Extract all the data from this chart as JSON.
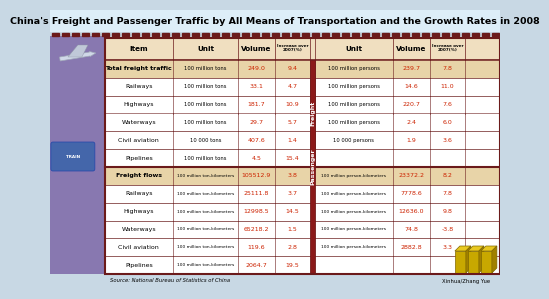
{
  "title": "China's Freight and Passenger Traffic by All Means of Transportation and the Growth Rates in 2008",
  "source_text": "Source: National Bureau of Statistics of China",
  "credit_text": "Xinhua/Zhang Yue",
  "freight_label": "Freight",
  "passenger_label": "Passenger",
  "bg_color": "#c8d8e4",
  "title_bg": "#ddeef8",
  "table_border": "#6b1a1a",
  "header_bg": "#f0dfc0",
  "bold_row_bg": "#e8d4a8",
  "normal_row_bg": "#ffffff",
  "dashed_color": "#6b1a1a",
  "vol_color": "#cc2200",
  "inc_color": "#cc2200",
  "text_color": "#000000",
  "freight_section": {
    "rows": [
      {
        "item": "Total freight traffic",
        "unit": "100 million tons",
        "volume": "249.0",
        "increase": "9.4",
        "unit2": "100 million persons",
        "volume2": "239.7",
        "increase2": "7.8",
        "bold": true
      },
      {
        "item": "Railways",
        "unit": "100 million tons",
        "volume": "33.1",
        "increase": "4.7",
        "unit2": "100 million persons",
        "volume2": "14.6",
        "increase2": "11.0",
        "bold": false
      },
      {
        "item": "Highways",
        "unit": "100 million tons",
        "volume": "181.7",
        "increase": "10.9",
        "unit2": "100 million persons",
        "volume2": "220.7",
        "increase2": "7.6",
        "bold": false
      },
      {
        "item": "Waterways",
        "unit": "100 million tons",
        "volume": "29.7",
        "increase": "5.7",
        "unit2": "100 million persons",
        "volume2": "2.4",
        "increase2": "6.0",
        "bold": false
      },
      {
        "item": "Civil aviation",
        "unit": "10 000 tons",
        "volume": "407.6",
        "increase": "1.4",
        "unit2": "10 000 persons",
        "volume2": "1.9",
        "increase2": "3.6",
        "bold": false
      },
      {
        "item": "Pipelines",
        "unit": "100 million tons",
        "volume": "4.5",
        "increase": "15.4",
        "unit2": "",
        "volume2": "",
        "increase2": "",
        "bold": false
      }
    ]
  },
  "flows_section": {
    "rows": [
      {
        "item": "Freight flows",
        "unit": "100 million ton-kilometers",
        "volume": "105512.9",
        "increase": "3.8",
        "unit2": "100 million person-kilometers",
        "volume2": "23372.2",
        "increase2": "8.2",
        "bold": true
      },
      {
        "item": "Railways",
        "unit": "100 million ton-kilometers",
        "volume": "25111.8",
        "increase": "3.7",
        "unit2": "100 million person-kilometers",
        "volume2": "7778.6",
        "increase2": "7.8",
        "bold": false
      },
      {
        "item": "Highways",
        "unit": "100 million ton-kilometers",
        "volume": "12998.5",
        "increase": "14.5",
        "unit2": "100 million person-kilometers",
        "volume2": "12636.0",
        "increase2": "9.8",
        "bold": false
      },
      {
        "item": "Waterways",
        "unit": "100 million ton-kilometers",
        "volume": "65218.2",
        "increase": "1.5",
        "unit2": "100 million person-kilometers",
        "volume2": "74.8",
        "increase2": "-3.8",
        "bold": false
      },
      {
        "item": "Civil aviation",
        "unit": "100 million ton-kilometers",
        "volume": "119.6",
        "increase": "2.8",
        "unit2": "100 million person-kilometers",
        "volume2": "2882.8",
        "increase2": "3.3",
        "bold": false
      },
      {
        "item": "Pipelines",
        "unit": "100 million ton-kilometers",
        "volume": "2064.7",
        "increase": "19.5",
        "unit2": "",
        "volume2": "",
        "increase2": "",
        "bold": false
      }
    ]
  }
}
